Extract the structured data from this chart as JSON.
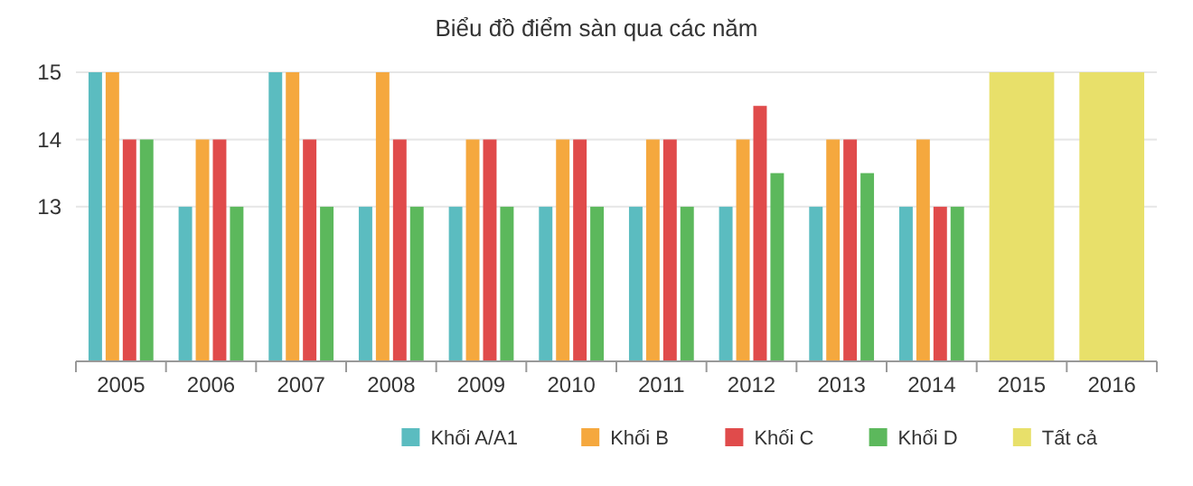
{
  "chart_data": {
    "type": "bar",
    "title": "Biểu đồ điểm sàn qua các năm",
    "categories": [
      "2005",
      "2006",
      "2007",
      "2008",
      "2009",
      "2010",
      "2011",
      "2012",
      "2013",
      "2014",
      "2015",
      "2016"
    ],
    "series": [
      {
        "name": "Khối A/A1",
        "color": "#5bbcc0",
        "values": [
          15,
          13,
          15,
          13,
          13,
          13,
          13,
          13,
          13,
          13,
          null,
          null
        ]
      },
      {
        "name": "Khối B",
        "color": "#f5a83e",
        "values": [
          15,
          14,
          15,
          15,
          14,
          14,
          14,
          14,
          14,
          14,
          null,
          null
        ]
      },
      {
        "name": "Khối C",
        "color": "#e04b4b",
        "values": [
          14,
          14,
          14,
          14,
          14,
          14,
          14,
          14.5,
          14,
          13,
          null,
          null
        ]
      },
      {
        "name": "Khối D",
        "color": "#5cb85c",
        "values": [
          14,
          13,
          13,
          13,
          13,
          13,
          13,
          13.5,
          13.5,
          13,
          null,
          null
        ]
      },
      {
        "name": "Tất cả",
        "color": "#e8e06a",
        "values": [
          null,
          null,
          null,
          null,
          null,
          null,
          null,
          null,
          null,
          null,
          15,
          15
        ]
      }
    ],
    "ylim": [
      10.7,
      15
    ],
    "yticks": [
      13,
      14,
      15
    ],
    "grid": "y",
    "legend": "bottom right"
  }
}
